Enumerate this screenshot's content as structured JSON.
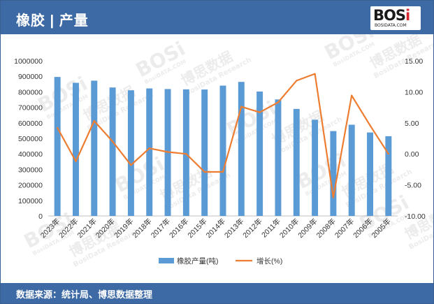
{
  "header": {
    "title": "橡胶 | 产量"
  },
  "logo": {
    "brand_main": "BOS",
    "brand_accent": "i",
    "domain": "BOSIDATA.COM"
  },
  "footer": {
    "source": "数据来源：统计局、博思数据整理"
  },
  "watermark": {
    "brand": "BOSi",
    "site": "BosiDATA.COM",
    "cn": "博思数据",
    "en": "BosiData Research"
  },
  "colors": {
    "bar": "#5b9bd5",
    "line": "#ed7d31",
    "header": "#3d6aa5"
  },
  "chart_data": {
    "type": "bar",
    "categories": [
      "2023年",
      "2022年",
      "2021年",
      "2020年",
      "2019年",
      "2018年",
      "2017年",
      "2016年",
      "2015年",
      "2014年",
      "2013年",
      "2012年",
      "2011年",
      "2010年",
      "2009年",
      "2008年",
      "2007年",
      "2006年",
      "2005年"
    ],
    "series": [
      {
        "name": "橡胶产量(吨)",
        "type": "bar",
        "axis": "left",
        "values": [
          896000,
          858000,
          872000,
          828000,
          810000,
          822000,
          818000,
          816000,
          815000,
          840000,
          864000,
          802000,
          751000,
          690000,
          620000,
          547000,
          588000,
          538000,
          514000
        ]
      },
      {
        "name": "增长(%)",
        "type": "line",
        "axis": "right",
        "values": [
          4.2,
          -1.2,
          5.3,
          2.0,
          -1.8,
          0.9,
          0.3,
          0.0,
          -2.9,
          -2.9,
          7.6,
          6.7,
          8.3,
          11.8,
          12.9,
          -7.0,
          9.4,
          4.6,
          0.0
        ]
      }
    ],
    "y_left": {
      "min": 0,
      "max": 1000000,
      "ticks": [
        "0",
        "100000",
        "200000",
        "300000",
        "400000",
        "500000",
        "600000",
        "700000",
        "800000",
        "900000",
        "1000000"
      ]
    },
    "y_right": {
      "min": -10,
      "max": 15,
      "ticks": [
        "-10.00",
        "-5.00",
        "0.00",
        "5.00",
        "10.00",
        "15.00"
      ]
    },
    "legend_position": "bottom",
    "grid": false
  }
}
